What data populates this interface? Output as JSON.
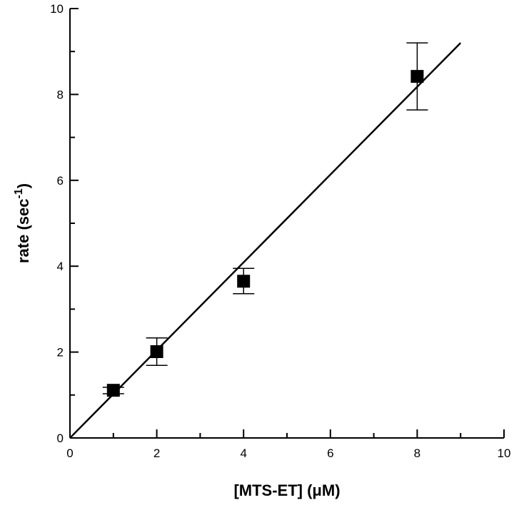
{
  "chart_data": {
    "type": "scatter",
    "title": "",
    "xlabel": "[MTS-ET] (μM)",
    "ylabel_main": "rate (sec",
    "ylabel_sup": "-1",
    "ylabel_close": ")",
    "xlim": [
      0,
      10
    ],
    "ylim": [
      0,
      10
    ],
    "x_ticks": [
      0,
      2,
      4,
      6,
      8,
      10
    ],
    "y_ticks": [
      0,
      2,
      4,
      6,
      8,
      10
    ],
    "x_tick_labels": [
      "0",
      "2",
      "4",
      "6",
      "8",
      "10"
    ],
    "y_tick_labels": [
      "0",
      "2",
      "4",
      "6",
      "8",
      "10"
    ],
    "minor_tick_step": 1,
    "grid": false,
    "marker": "filled-square",
    "color": "#000000",
    "points": [
      {
        "x": 1,
        "y": 1.11,
        "err_low": 1.03,
        "err_high": 1.18
      },
      {
        "x": 2,
        "y": 2.01,
        "err_low": 1.69,
        "err_high": 2.33
      },
      {
        "x": 4,
        "y": 3.65,
        "err_low": 3.36,
        "err_high": 3.95
      },
      {
        "x": 8,
        "y": 8.42,
        "err_low": 7.64,
        "err_high": 9.2
      }
    ],
    "fit_line": {
      "x": [
        0,
        9
      ],
      "y": [
        0,
        9.2
      ]
    }
  }
}
